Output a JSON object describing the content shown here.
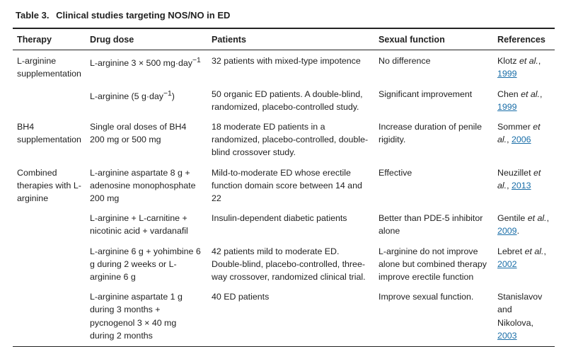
{
  "caption": {
    "label": "Table 3.",
    "title": "Clinical studies targeting NOS/NO in ED"
  },
  "headers": [
    "Therapy",
    "Drug dose",
    "Patients",
    "Sexual function",
    "References"
  ],
  "rows": [
    {
      "therapy": "L-arginine supplementation",
      "dose_pre": "L-arginine 3 × 500 mg·day",
      "dose_sup": "−1",
      "dose_post": "",
      "patients": "32 patients with mixed-type impotence",
      "sexual_function": "No difference",
      "ref_author": "Klotz ",
      "ref_etal": "et al.",
      "ref_sep": ", ",
      "ref_year": "1999",
      "ref_tail": ""
    },
    {
      "therapy": "",
      "dose_pre": "L-arginine (5 g·day",
      "dose_sup": "−1",
      "dose_post": ")",
      "patients": "50 organic ED patients. A double-blind, randomized, placebo-controlled study.",
      "sexual_function": "Significant improvement",
      "ref_author": "Chen ",
      "ref_etal": "et al.",
      "ref_sep": ", ",
      "ref_year": "1999",
      "ref_tail": ""
    },
    {
      "therapy": "BH4 supplementation",
      "dose_pre": "Single oral doses of BH4 200 mg or 500 mg",
      "dose_sup": "",
      "dose_post": "",
      "patients": "18 moderate ED patients in a randomized, placebo-controlled, double-blind crossover study.",
      "sexual_function": "Increase duration of penile rigidity.",
      "ref_author": "Sommer ",
      "ref_etal": "et al.",
      "ref_sep": ", ",
      "ref_year": "2006",
      "ref_tail": ""
    },
    {
      "therapy": "Combined therapies with L-arginine",
      "dose_pre": "L-arginine aspartate 8 g + adenosine monophosphate 200 mg",
      "dose_sup": "",
      "dose_post": "",
      "patients": "Mild-to-moderate ED whose erectile function domain score between 14 and 22",
      "sexual_function": "Effective",
      "ref_author": "Neuzillet ",
      "ref_etal": "et al.",
      "ref_sep": ", ",
      "ref_year": "2013",
      "ref_tail": ""
    },
    {
      "therapy": "",
      "dose_pre": "L-arginine + L-carnitine + nicotinic acid + vardanafil",
      "dose_sup": "",
      "dose_post": "",
      "patients": "Insulin-dependent diabetic patients",
      "sexual_function": "Better than PDE-5 inhibitor alone",
      "ref_author": "Gentile ",
      "ref_etal": "et al.",
      "ref_sep": ", ",
      "ref_year": "2009",
      "ref_tail": "."
    },
    {
      "therapy": "",
      "dose_pre": "L-arginine 6 g + yohimbine 6 g during 2 weeks or L-arginine 6 g",
      "dose_sup": "",
      "dose_post": "",
      "patients": "42 patients mild to moderate ED. Double-blind, placebo-controlled, three-way crossover, randomized clinical trial.",
      "sexual_function": "L-arginine do not improve alone but combined therapy improve erectile function",
      "ref_author": "Lebret ",
      "ref_etal": "et al.",
      "ref_sep": ", ",
      "ref_year": "2002",
      "ref_tail": ""
    },
    {
      "therapy": "",
      "dose_pre": "L-arginine aspartate 1 g during 3 months + pycnogenol 3 × 40 mg during 2 months",
      "dose_sup": "",
      "dose_post": "",
      "patients": "40 ED patients",
      "sexual_function": "Improve sexual function.",
      "ref_author": "Stanislavov and Nikolova",
      "ref_etal": "",
      "ref_sep": ", ",
      "ref_year": "2003",
      "ref_tail": ""
    }
  ]
}
